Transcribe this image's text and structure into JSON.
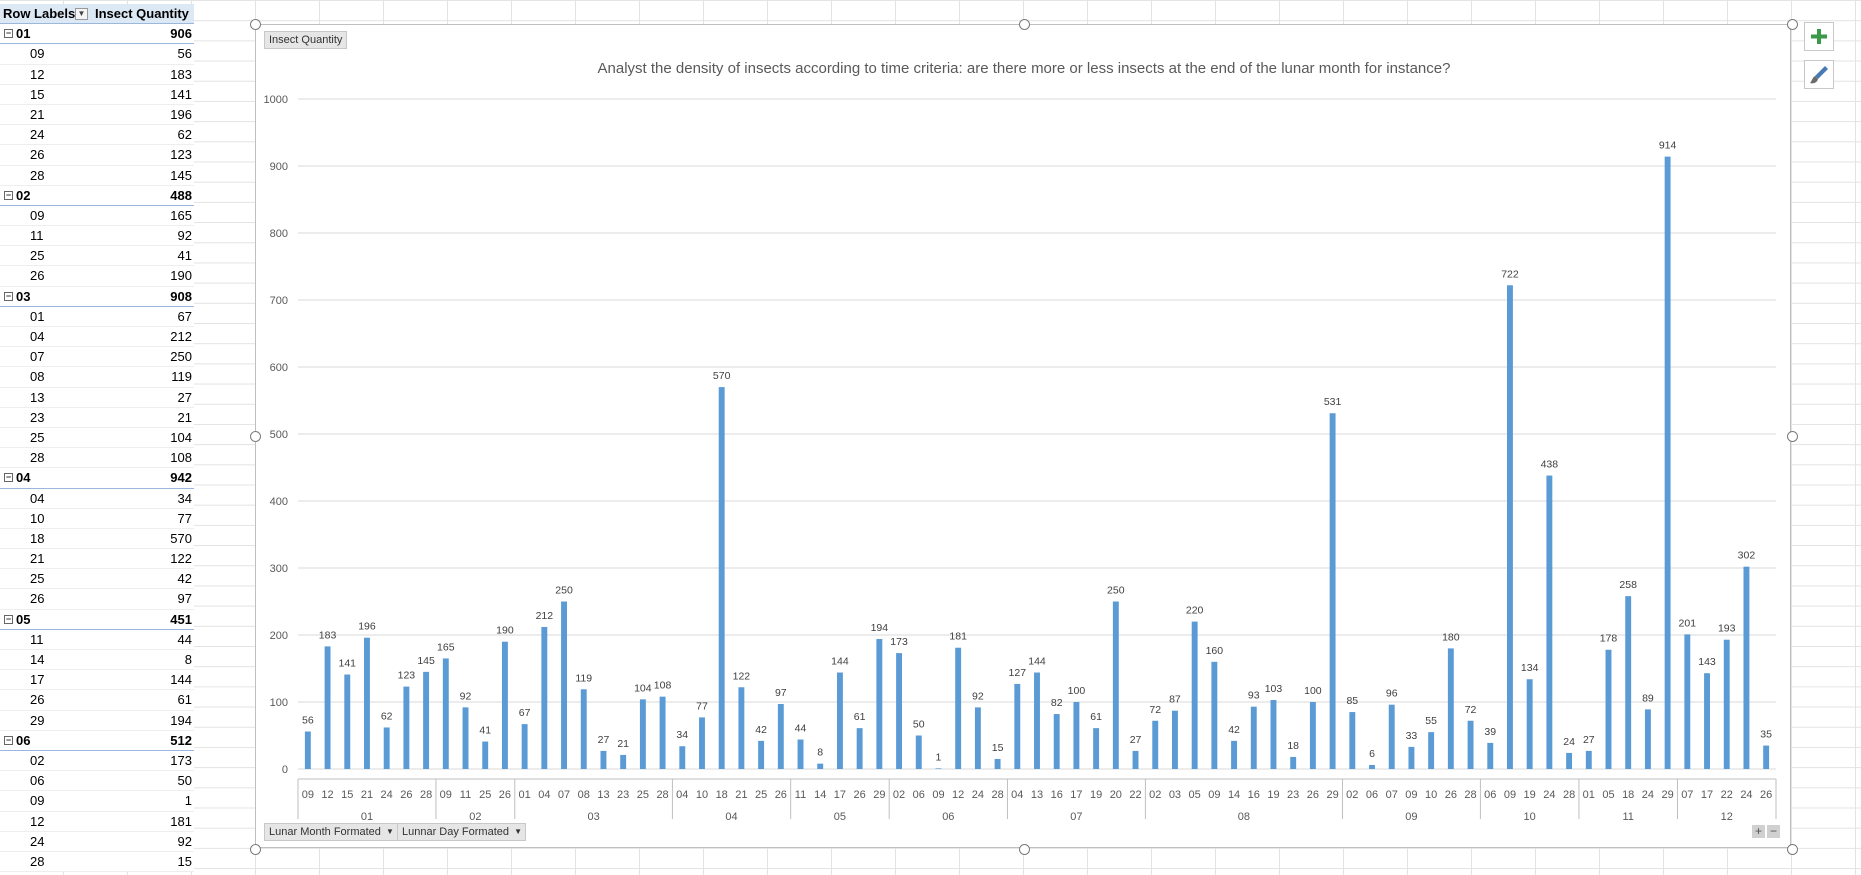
{
  "pivot": {
    "header": {
      "row_labels": "Row Labels",
      "value_header": "Insect Quantity"
    },
    "rows": [
      {
        "type": "month",
        "label": "01",
        "value": "906"
      },
      {
        "type": "day",
        "label": "09",
        "value": "56"
      },
      {
        "type": "day",
        "label": "12",
        "value": "183"
      },
      {
        "type": "day",
        "label": "15",
        "value": "141"
      },
      {
        "type": "day",
        "label": "21",
        "value": "196"
      },
      {
        "type": "day",
        "label": "24",
        "value": "62"
      },
      {
        "type": "day",
        "label": "26",
        "value": "123"
      },
      {
        "type": "day",
        "label": "28",
        "value": "145"
      },
      {
        "type": "month",
        "label": "02",
        "value": "488"
      },
      {
        "type": "day",
        "label": "09",
        "value": "165"
      },
      {
        "type": "day",
        "label": "11",
        "value": "92"
      },
      {
        "type": "day",
        "label": "25",
        "value": "41"
      },
      {
        "type": "day",
        "label": "26",
        "value": "190"
      },
      {
        "type": "month",
        "label": "03",
        "value": "908"
      },
      {
        "type": "day",
        "label": "01",
        "value": "67"
      },
      {
        "type": "day",
        "label": "04",
        "value": "212"
      },
      {
        "type": "day",
        "label": "07",
        "value": "250"
      },
      {
        "type": "day",
        "label": "08",
        "value": "119"
      },
      {
        "type": "day",
        "label": "13",
        "value": "27"
      },
      {
        "type": "day",
        "label": "23",
        "value": "21"
      },
      {
        "type": "day",
        "label": "25",
        "value": "104"
      },
      {
        "type": "day",
        "label": "28",
        "value": "108"
      },
      {
        "type": "month",
        "label": "04",
        "value": "942"
      },
      {
        "type": "day",
        "label": "04",
        "value": "34"
      },
      {
        "type": "day",
        "label": "10",
        "value": "77"
      },
      {
        "type": "day",
        "label": "18",
        "value": "570"
      },
      {
        "type": "day",
        "label": "21",
        "value": "122"
      },
      {
        "type": "day",
        "label": "25",
        "value": "42"
      },
      {
        "type": "day",
        "label": "26",
        "value": "97"
      },
      {
        "type": "month",
        "label": "05",
        "value": "451"
      },
      {
        "type": "day",
        "label": "11",
        "value": "44"
      },
      {
        "type": "day",
        "label": "14",
        "value": "8"
      },
      {
        "type": "day",
        "label": "17",
        "value": "144"
      },
      {
        "type": "day",
        "label": "26",
        "value": "61"
      },
      {
        "type": "day",
        "label": "29",
        "value": "194"
      },
      {
        "type": "month",
        "label": "06",
        "value": "512"
      },
      {
        "type": "day",
        "label": "02",
        "value": "173"
      },
      {
        "type": "day",
        "label": "06",
        "value": "50"
      },
      {
        "type": "day",
        "label": "09",
        "value": "1"
      },
      {
        "type": "day",
        "label": "12",
        "value": "181"
      },
      {
        "type": "day",
        "label": "24",
        "value": "92"
      },
      {
        "type": "day",
        "label": "28",
        "value": "15"
      }
    ]
  },
  "chart_tag": "Insect Quantity",
  "field_buttons": [
    "Lunar Month Formated",
    "Lunnar Day Formated"
  ],
  "colors": {
    "bar": "#5b9bd5",
    "axis_text": "#595959",
    "gridline": "#d9d9d9"
  },
  "icons": {
    "add_element": "plus-icon",
    "chart_style": "brush-icon"
  },
  "chart_data": {
    "type": "bar",
    "title": "Analyst the density of insects according to time criteria: are there more or less insects at the end of the lunar month for instance?",
    "ylim": [
      0,
      1000
    ],
    "yticks": [
      0,
      100,
      200,
      300,
      400,
      500,
      600,
      700,
      800,
      900,
      1000
    ],
    "grid": true,
    "groups": [
      {
        "label": "01",
        "days": [
          "09",
          "12",
          "15",
          "21",
          "24",
          "26",
          "28"
        ],
        "values": [
          56,
          183,
          141,
          196,
          62,
          123,
          145
        ]
      },
      {
        "label": "02",
        "days": [
          "09",
          "11",
          "25",
          "26"
        ],
        "values": [
          165,
          92,
          41,
          190
        ]
      },
      {
        "label": "03",
        "days": [
          "01",
          "04",
          "07",
          "08",
          "13",
          "23",
          "25",
          "28"
        ],
        "values": [
          67,
          212,
          250,
          119,
          27,
          21,
          104,
          108
        ]
      },
      {
        "label": "04",
        "days": [
          "04",
          "10",
          "18",
          "21",
          "25",
          "26"
        ],
        "values": [
          34,
          77,
          570,
          122,
          42,
          97
        ]
      },
      {
        "label": "05",
        "days": [
          "11",
          "14",
          "17",
          "26",
          "29"
        ],
        "values": [
          44,
          8,
          144,
          61,
          194
        ]
      },
      {
        "label": "06",
        "days": [
          "02",
          "06",
          "09",
          "12",
          "24",
          "28"
        ],
        "values": [
          173,
          50,
          1,
          181,
          92,
          15
        ]
      },
      {
        "label": "07",
        "days": [
          "04",
          "13",
          "16",
          "17",
          "19",
          "20",
          "22"
        ],
        "values": [
          127,
          144,
          82,
          100,
          61,
          250,
          27
        ]
      },
      {
        "label": "08",
        "days": [
          "02",
          "03",
          "05",
          "09",
          "14",
          "16",
          "19",
          "23",
          "26",
          "29"
        ],
        "values": [
          72,
          87,
          220,
          160,
          42,
          93,
          103,
          18,
          100,
          531
        ]
      },
      {
        "label": "09",
        "days": [
          "02",
          "06",
          "07",
          "09",
          "10",
          "26",
          "28"
        ],
        "values": [
          85,
          6,
          96,
          33,
          55,
          180,
          72
        ]
      },
      {
        "label": "10",
        "days": [
          "06",
          "09",
          "19",
          "24",
          "28"
        ],
        "values": [
          39,
          722,
          134,
          438,
          24
        ]
      },
      {
        "label": "11",
        "days": [
          "01",
          "05",
          "18",
          "24",
          "29"
        ],
        "values": [
          27,
          178,
          258,
          89,
          914
        ]
      },
      {
        "label": "12",
        "days": [
          "07",
          "17",
          "22",
          "24",
          "26"
        ],
        "values": [
          201,
          143,
          193,
          302,
          35
        ]
      }
    ]
  }
}
